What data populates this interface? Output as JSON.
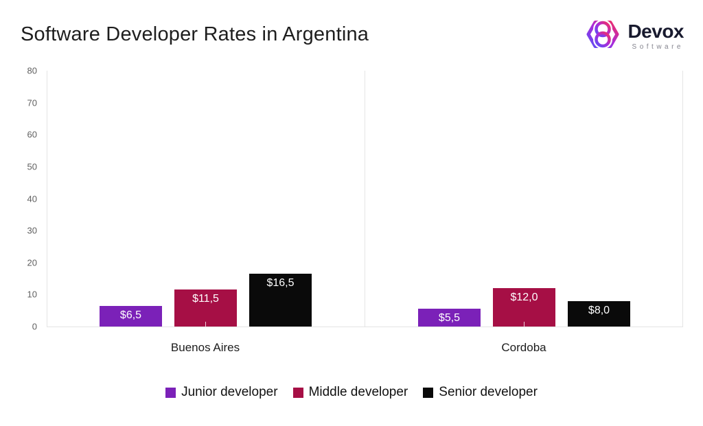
{
  "title": "Software Developer Rates in Argentina",
  "logo": {
    "name": "Devox",
    "subtitle": "Software"
  },
  "colors": {
    "junior": "#7B21B8",
    "middle": "#A60F45",
    "senior": "#0A0A0A",
    "axis_line": "#e4e4e4",
    "tick_text": "#5f5f5f",
    "logo_gradient_start": "#5B4FF5",
    "logo_gradient_mid": "#A82BDB",
    "logo_gradient_end": "#F62E5E"
  },
  "chart_data": {
    "type": "bar",
    "title": "Software Developer Rates in Argentina",
    "categories": [
      "Buenos Aires",
      "Cordoba"
    ],
    "series": [
      {
        "name": "Junior developer",
        "color": "#7B21B8",
        "values": [
          6.5,
          5.5
        ],
        "labels": [
          "$6,5",
          "$5,5"
        ]
      },
      {
        "name": "Middle developer",
        "color": "#A60F45",
        "values": [
          11.5,
          12.0
        ],
        "labels": [
          "$11,5",
          "$12,0"
        ]
      },
      {
        "name": "Senior developer",
        "color": "#0A0A0A",
        "values": [
          16.5,
          8.0
        ],
        "labels": [
          "$16,5",
          "$8,0"
        ]
      }
    ],
    "xlabel": "",
    "ylabel": "",
    "ylim": [
      0,
      80
    ],
    "yticks": [
      0,
      10,
      20,
      30,
      40,
      50,
      60,
      70,
      80
    ],
    "grid": false,
    "panel_dividers": true,
    "value_labels": "inside-top, white, comma decimal, $ prefix",
    "legend_position": "bottom-center"
  }
}
